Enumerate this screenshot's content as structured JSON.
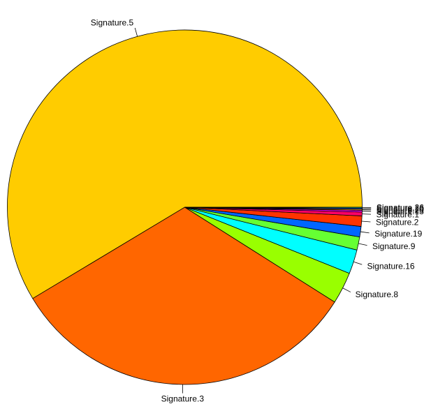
{
  "chart_data": {
    "type": "pie",
    "title": "",
    "slices": [
      {
        "label": "Signature.5",
        "value": 58.6,
        "color": "#FFCC00"
      },
      {
        "label": "Signature.3",
        "value": 32.4,
        "color": "#FF6600"
      },
      {
        "label": "Signature.8",
        "value": 2.9,
        "color": "#99FF00"
      },
      {
        "label": "Signature.16",
        "value": 2.2,
        "color": "#00FFFF"
      },
      {
        "label": "Signature.9",
        "value": 1.2,
        "color": "#66FF33"
      },
      {
        "label": "Signature.19",
        "value": 0.95,
        "color": "#0066FF"
      },
      {
        "label": "Signature.2",
        "value": 0.95,
        "color": "#FF3300"
      },
      {
        "label": "Signature.1",
        "value": 0.35,
        "color": "#FF0066"
      },
      {
        "label": "Signature.13",
        "value": 0.15,
        "color": "#FF00FF"
      },
      {
        "label": "Signature.20",
        "value": 0.1,
        "color": "#FF9900"
      },
      {
        "label": "Signature.10",
        "value": 0.1,
        "color": "#3366FF"
      },
      {
        "label": "Signature.26",
        "value": 0.08,
        "color": "#00CC99"
      }
    ],
    "start": "right, counter-clockwise",
    "legend": "none",
    "grid": false
  }
}
